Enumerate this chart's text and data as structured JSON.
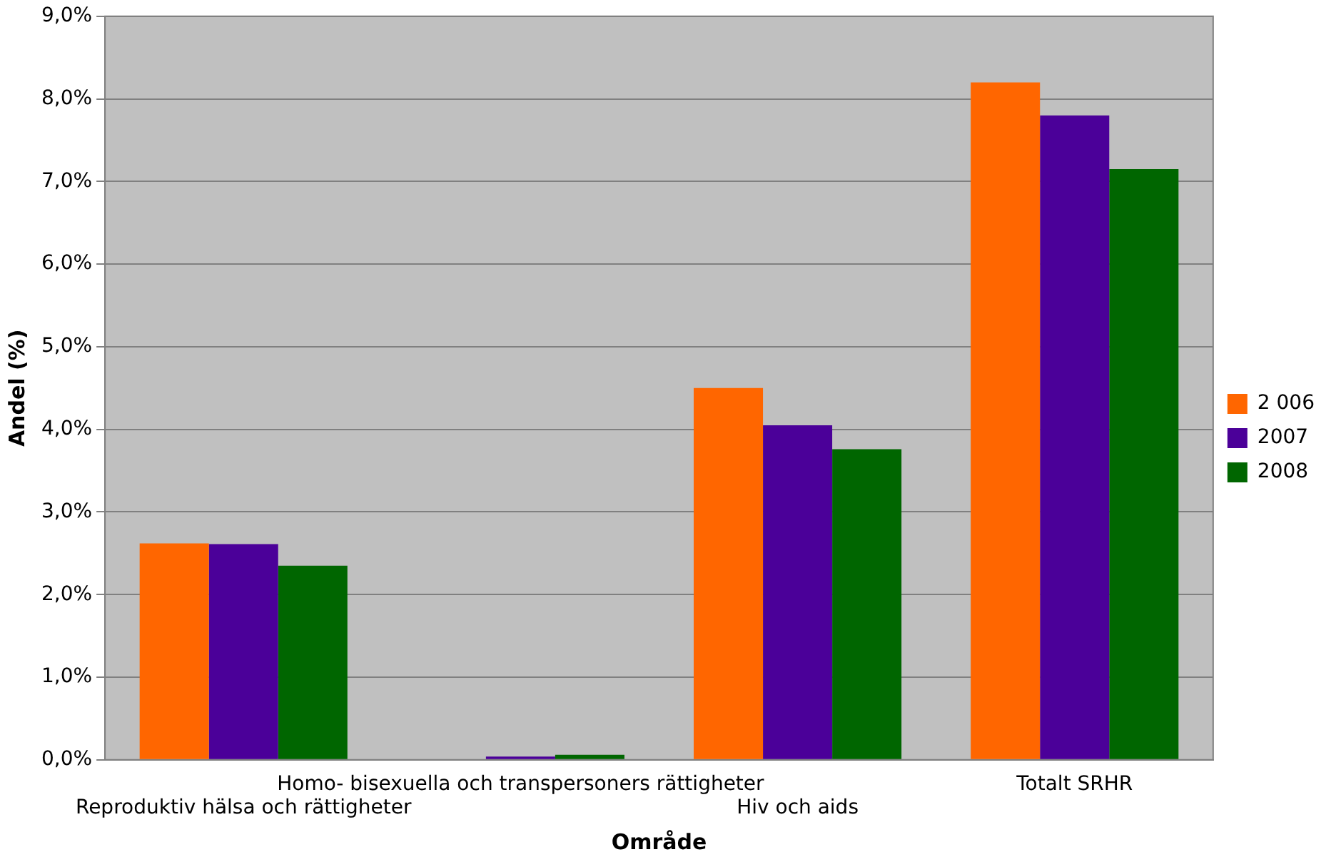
{
  "chart_data": {
    "type": "bar",
    "xlabel": "Område",
    "ylabel": "Andel (%)",
    "categories": [
      "Reproduktiv hälsa och rättigheter",
      "Homo- bisexuella och transpersoners rättigheter",
      "Hiv och aids",
      "Totalt SRHR"
    ],
    "series": [
      {
        "name": "2 006",
        "color": "#ff6600",
        "values": [
          2.62,
          null,
          4.5,
          8.2
        ]
      },
      {
        "name": "2007",
        "color": "#4b0099",
        "values": [
          2.61,
          0.04,
          4.05,
          7.8
        ]
      },
      {
        "name": "2008",
        "color": "#006600",
        "values": [
          2.35,
          0.06,
          3.76,
          7.15
        ]
      }
    ],
    "ylim": [
      0,
      9
    ],
    "yticks": [
      {
        "value": 0,
        "label": "0,0%"
      },
      {
        "value": 1,
        "label": "1,0%"
      },
      {
        "value": 2,
        "label": "2,0%"
      },
      {
        "value": 3,
        "label": "3,0%"
      },
      {
        "value": 4,
        "label": "4,0%"
      },
      {
        "value": 5,
        "label": "5,0%"
      },
      {
        "value": 6,
        "label": "6,0%"
      },
      {
        "value": 7,
        "label": "7,0%"
      },
      {
        "value": 8,
        "label": "8,0%"
      },
      {
        "value": 9,
        "label": "9,0%"
      }
    ],
    "grid": "y",
    "legend": "right"
  }
}
